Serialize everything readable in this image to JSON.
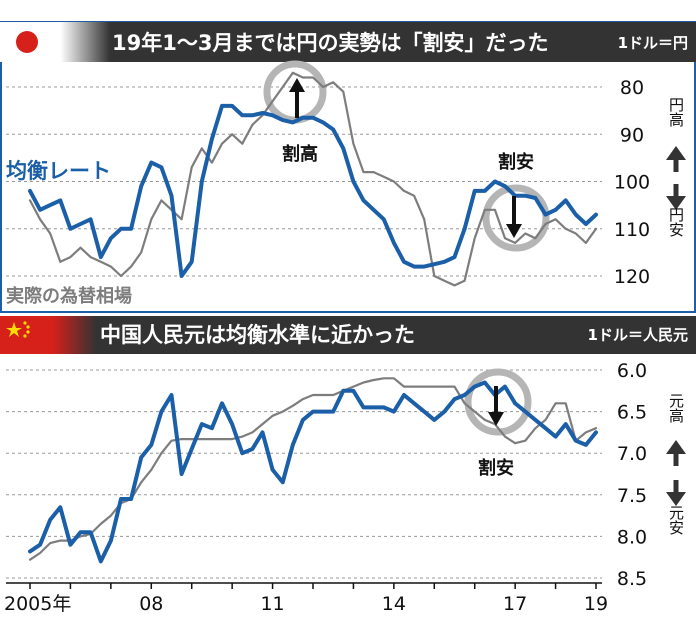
{
  "colors": {
    "fair": "#1a5fa8",
    "actual": "#7d7d7d",
    "titlebar": "#333333",
    "accent": "#1a5fa8",
    "circle": "#b5b5b5"
  },
  "chart_data": [
    {
      "type": "line",
      "title": "19年1～3月までは円の実勢は「割安」だった",
      "unit": "1ドル＝円",
      "y_ticks": [
        80,
        90,
        100,
        110,
        120
      ],
      "ylim": [
        75,
        125
      ],
      "y_inverted": true,
      "xlim": [
        2005,
        2019.2
      ],
      "y_annot_top": "円高",
      "y_annot_bottom": "円安",
      "series": [
        {
          "name": "均衡レート",
          "color": "#1a5fa8",
          "x": [
            2005.0,
            2005.25,
            2005.5,
            2005.75,
            2006.0,
            2006.25,
            2006.5,
            2006.75,
            2007.0,
            2007.25,
            2007.5,
            2007.75,
            2008.0,
            2008.25,
            2008.5,
            2008.75,
            2009.0,
            2009.25,
            2009.5,
            2009.75,
            2010.0,
            2010.25,
            2010.5,
            2010.75,
            2011.0,
            2011.25,
            2011.5,
            2011.75,
            2012.0,
            2012.25,
            2012.5,
            2012.75,
            2013.0,
            2013.25,
            2013.5,
            2013.75,
            2014.0,
            2014.25,
            2014.5,
            2014.75,
            2015.0,
            2015.25,
            2015.5,
            2015.75,
            2016.0,
            2016.25,
            2016.5,
            2016.75,
            2017.0,
            2017.25,
            2017.5,
            2017.75,
            2018.0,
            2018.25,
            2018.5,
            2018.75,
            2019.0
          ],
          "values": [
            102,
            106,
            105,
            104,
            110,
            109,
            108,
            116,
            112,
            110,
            110,
            101,
            96,
            97,
            103,
            120,
            117,
            100,
            91,
            84,
            84,
            86,
            86,
            85.5,
            86,
            87,
            87.5,
            86.5,
            86.5,
            87.5,
            89,
            93,
            100,
            104,
            106,
            108,
            113,
            117,
            118,
            118,
            117.5,
            117,
            116,
            110,
            102,
            102,
            100,
            101,
            103,
            103,
            103.5,
            107,
            106,
            104,
            107,
            109,
            107
          ]
        },
        {
          "name": "実際の為替相場",
          "color": "#7d7d7d",
          "x": [
            2005.0,
            2005.25,
            2005.5,
            2005.75,
            2006.0,
            2006.25,
            2006.5,
            2006.75,
            2007.0,
            2007.25,
            2007.5,
            2007.75,
            2008.0,
            2008.25,
            2008.5,
            2008.75,
            2009.0,
            2009.25,
            2009.5,
            2009.75,
            2010.0,
            2010.25,
            2010.5,
            2010.75,
            2011.0,
            2011.25,
            2011.5,
            2011.75,
            2012.0,
            2012.25,
            2012.5,
            2012.75,
            2013.0,
            2013.25,
            2013.5,
            2013.75,
            2014.0,
            2014.25,
            2014.5,
            2014.75,
            2015.0,
            2015.25,
            2015.5,
            2015.75,
            2016.0,
            2016.25,
            2016.5,
            2016.75,
            2017.0,
            2017.25,
            2017.5,
            2017.75,
            2018.0,
            2018.25,
            2018.5,
            2018.75,
            2019.0
          ],
          "values": [
            104,
            108,
            111,
            117,
            116,
            114,
            116,
            117,
            118,
            120,
            118,
            115,
            108,
            104,
            106,
            108,
            97,
            93,
            96,
            92,
            90,
            92,
            88,
            86,
            83,
            80,
            77,
            78,
            78,
            80,
            79,
            81,
            92,
            98,
            98,
            99,
            100,
            102,
            103,
            108,
            120,
            121,
            122,
            121,
            112,
            106,
            106,
            112,
            113,
            111,
            112,
            109,
            108,
            110,
            111,
            113,
            110
          ]
        }
      ]
    },
    {
      "type": "line",
      "title": "中国人民元は均衡水準に近かった",
      "unit": "1ドル＝人民元",
      "y_ticks": [
        6.0,
        6.5,
        7.0,
        7.5,
        8.0,
        8.5
      ],
      "ylim": [
        6.0,
        8.5
      ],
      "y_inverted": true,
      "xlim": [
        2005,
        2019.2
      ],
      "x_ticks": [
        "2005年",
        "08",
        "11",
        "14",
        "17",
        "19"
      ],
      "x_tick_values": [
        2005,
        2008,
        2011,
        2014,
        2017,
        2019
      ],
      "y_annot_top": "元高",
      "y_annot_bottom": "元安",
      "series": [
        {
          "name": "均衡レート",
          "color": "#1a5fa8",
          "x": [
            2005.0,
            2005.25,
            2005.5,
            2005.75,
            2006.0,
            2006.25,
            2006.5,
            2006.75,
            2007.0,
            2007.25,
            2007.5,
            2007.75,
            2008.0,
            2008.25,
            2008.5,
            2008.75,
            2009.0,
            2009.25,
            2009.5,
            2009.75,
            2010.0,
            2010.25,
            2010.5,
            2010.75,
            2011.0,
            2011.25,
            2011.5,
            2011.75,
            2012.0,
            2012.25,
            2012.5,
            2012.75,
            2013.0,
            2013.25,
            2013.5,
            2013.75,
            2014.0,
            2014.25,
            2014.5,
            2014.75,
            2015.0,
            2015.25,
            2015.5,
            2015.75,
            2016.0,
            2016.25,
            2016.5,
            2016.75,
            2017.0,
            2017.25,
            2017.5,
            2017.75,
            2018.0,
            2018.25,
            2018.5,
            2018.75,
            2019.0
          ],
          "values": [
            8.18,
            8.1,
            7.8,
            7.65,
            8.1,
            7.95,
            7.95,
            8.3,
            8.05,
            7.55,
            7.55,
            7.05,
            6.9,
            6.5,
            6.3,
            7.25,
            6.95,
            6.65,
            6.7,
            6.4,
            6.65,
            7.0,
            6.95,
            6.75,
            7.2,
            7.35,
            6.9,
            6.6,
            6.5,
            6.5,
            6.5,
            6.25,
            6.25,
            6.45,
            6.45,
            6.45,
            6.5,
            6.3,
            6.4,
            6.5,
            6.6,
            6.5,
            6.35,
            6.3,
            6.2,
            6.15,
            6.3,
            6.2,
            6.4,
            6.5,
            6.6,
            6.7,
            6.8,
            6.65,
            6.85,
            6.9,
            6.75
          ]
        },
        {
          "name": "実際の為替相場",
          "color": "#7d7d7d",
          "x": [
            2005.0,
            2005.25,
            2005.5,
            2005.75,
            2006.0,
            2006.25,
            2006.5,
            2006.75,
            2007.0,
            2007.25,
            2007.5,
            2007.75,
            2008.0,
            2008.25,
            2008.5,
            2008.75,
            2009.0,
            2009.25,
            2009.5,
            2009.75,
            2010.0,
            2010.25,
            2010.5,
            2010.75,
            2011.0,
            2011.25,
            2011.5,
            2011.75,
            2012.0,
            2012.25,
            2012.5,
            2012.75,
            2013.0,
            2013.25,
            2013.5,
            2013.75,
            2014.0,
            2014.25,
            2014.5,
            2014.75,
            2015.0,
            2015.25,
            2015.5,
            2015.75,
            2016.0,
            2016.25,
            2016.5,
            2016.75,
            2017.0,
            2017.25,
            2017.5,
            2017.75,
            2018.0,
            2018.25,
            2018.5,
            2018.75,
            2019.0
          ],
          "values": [
            8.28,
            8.2,
            8.08,
            8.05,
            8.05,
            8.0,
            7.97,
            7.85,
            7.75,
            7.6,
            7.55,
            7.35,
            7.2,
            7.0,
            6.85,
            6.83,
            6.83,
            6.83,
            6.83,
            6.83,
            6.83,
            6.8,
            6.75,
            6.65,
            6.55,
            6.5,
            6.43,
            6.35,
            6.3,
            6.3,
            6.3,
            6.25,
            6.2,
            6.15,
            6.12,
            6.1,
            6.1,
            6.2,
            6.2,
            6.2,
            6.2,
            6.2,
            6.2,
            6.4,
            6.5,
            6.6,
            6.65,
            6.8,
            6.88,
            6.85,
            6.7,
            6.6,
            6.4,
            6.4,
            6.85,
            6.75,
            6.7
          ]
        }
      ]
    }
  ],
  "legend": {
    "fair": "均衡レート",
    "actual": "実際の為替相場"
  },
  "annotations": {
    "top_high": "割高",
    "top_low": "割安",
    "bottom_low": "割安"
  },
  "flags": {
    "japan": "japan-flag-icon",
    "china": "china-flag-icon"
  }
}
